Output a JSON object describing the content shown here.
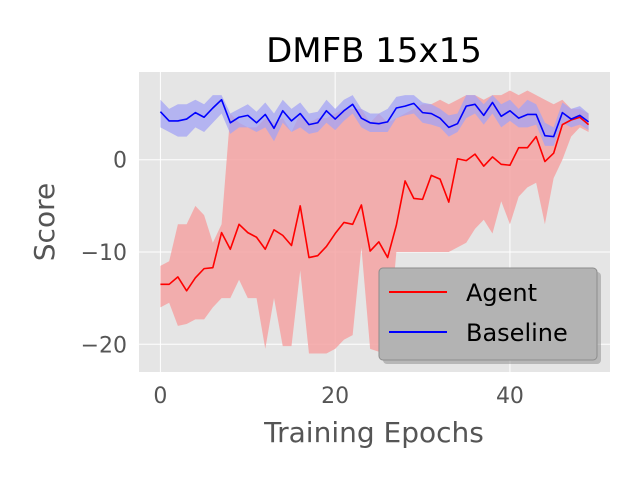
{
  "chart_data": {
    "type": "line",
    "title": "DMFB 15x15",
    "xlabel": "Training Epochs",
    "ylabel": "Score",
    "xlim": [
      -2.45,
      51.45
    ],
    "ylim": [
      -23,
      9.5
    ],
    "xticks": [
      0,
      20,
      40
    ],
    "xtick_labels": [
      "0",
      "20",
      "40"
    ],
    "yticks": [
      0,
      -10,
      -20
    ],
    "ytick_labels": [
      "0",
      "−10",
      "−20"
    ],
    "grid": true,
    "legend_position": "lower-right",
    "x": [
      0,
      1,
      2,
      3,
      4,
      5,
      6,
      7,
      8,
      9,
      10,
      11,
      12,
      13,
      14,
      15,
      16,
      17,
      18,
      19,
      20,
      21,
      22,
      23,
      24,
      25,
      26,
      27,
      28,
      29,
      30,
      31,
      32,
      33,
      34,
      35,
      36,
      37,
      38,
      39,
      40,
      41,
      42,
      43,
      44,
      45,
      46,
      47,
      48,
      49
    ],
    "series": [
      {
        "name": "Agent",
        "color": "#ff0000",
        "band_color": "#f4a3a3",
        "values": [
          -13.5,
          -13.5,
          -12.7,
          -14.2,
          -12.8,
          -11.8,
          -11.7,
          -7.9,
          -9.7,
          -7.0,
          -7.9,
          -8.4,
          -9.7,
          -7.6,
          -8.2,
          -9.3,
          -5.0,
          -10.6,
          -10.4,
          -9.4,
          -8.0,
          -6.8,
          -7.0,
          -4.9,
          -9.9,
          -8.9,
          -10.6,
          -7.1,
          -2.3,
          -4.2,
          -4.3,
          -1.7,
          -2.1,
          -4.6,
          0.1,
          -0.1,
          0.6,
          -0.7,
          0.3,
          -0.5,
          -0.6,
          1.3,
          1.3,
          2.5,
          -0.2,
          0.7,
          3.8,
          4.3,
          4.6,
          3.8
        ],
        "lower": [
          -16.0,
          -15.5,
          -18.0,
          -17.8,
          -17.3,
          -17.3,
          -16.0,
          -15.0,
          -15.0,
          -13.0,
          -15.0,
          -15.0,
          -20.5,
          -15.0,
          -20.2,
          -20.2,
          -12.0,
          -21.0,
          -21.0,
          -21.0,
          -20.5,
          -19.5,
          -19.0,
          -9.5,
          -20.5,
          -20.8,
          -20.8,
          -10.0,
          -10.0,
          -10.0,
          -10.0,
          -10.0,
          -10.0,
          -10.0,
          -9.5,
          -9.0,
          -7.5,
          -6.5,
          -8.0,
          -4.5,
          -7.0,
          -4.0,
          -3.0,
          -2.5,
          -7.0,
          -2.0,
          0.0,
          2.5,
          3.5,
          3.0
        ],
        "upper": [
          -11.5,
          -11.0,
          -7.0,
          -7.0,
          -5.0,
          -6.0,
          -9.0,
          -7.0,
          5.0,
          4.0,
          3.5,
          3.5,
          4.5,
          4.0,
          4.5,
          3.0,
          5.0,
          4.0,
          4.5,
          4.5,
          5.0,
          5.5,
          5.5,
          5.5,
          4.0,
          5.0,
          4.0,
          4.5,
          5.0,
          5.5,
          6.0,
          6.0,
          6.5,
          6.0,
          6.5,
          7.0,
          7.0,
          6.5,
          7.0,
          7.0,
          7.5,
          7.0,
          7.5,
          7.0,
          6.5,
          6.0,
          6.5,
          5.5,
          5.5,
          5.0
        ]
      },
      {
        "name": "Baseline",
        "color": "#0000ff",
        "band_color": "#a3a3f4",
        "values": [
          5.2,
          4.2,
          4.2,
          4.4,
          5.1,
          4.6,
          5.6,
          6.5,
          4.0,
          4.6,
          4.8,
          4.0,
          4.9,
          3.4,
          5.3,
          4.2,
          5.0,
          3.8,
          4.0,
          5.3,
          4.4,
          5.3,
          6.0,
          4.5,
          4.0,
          3.9,
          4.1,
          5.6,
          5.8,
          6.1,
          5.1,
          5.0,
          4.5,
          3.5,
          3.9,
          5.8,
          6.0,
          4.8,
          6.2,
          4.7,
          5.3,
          4.5,
          4.9,
          4.9,
          2.6,
          2.5,
          5.1,
          4.4,
          4.8,
          4.1
        ],
        "lower": [
          3.5,
          3.0,
          2.5,
          2.5,
          3.5,
          3.0,
          4.0,
          5.0,
          2.8,
          3.5,
          3.5,
          3.0,
          3.5,
          2.0,
          4.0,
          3.0,
          3.5,
          2.8,
          3.0,
          4.0,
          3.2,
          4.2,
          5.0,
          3.5,
          3.0,
          3.0,
          3.0,
          4.5,
          4.8,
          5.0,
          4.0,
          3.8,
          3.5,
          2.5,
          3.0,
          4.5,
          5.0,
          3.8,
          5.0,
          3.5,
          4.2,
          3.5,
          3.5,
          3.8,
          1.5,
          1.5,
          4.0,
          3.5,
          3.8,
          3.2
        ],
        "upper": [
          6.5,
          5.5,
          6.0,
          6.0,
          6.5,
          6.0,
          7.0,
          7.0,
          5.0,
          5.5,
          6.0,
          5.2,
          6.2,
          5.0,
          6.5,
          5.5,
          6.2,
          5.0,
          5.2,
          6.5,
          5.5,
          6.5,
          7.0,
          5.5,
          5.0,
          5.0,
          5.5,
          6.8,
          7.0,
          7.0,
          6.2,
          6.0,
          5.5,
          4.8,
          5.0,
          7.0,
          7.0,
          6.0,
          7.0,
          6.0,
          6.5,
          5.5,
          6.5,
          6.0,
          4.0,
          3.5,
          6.2,
          5.5,
          5.8,
          5.0
        ]
      }
    ]
  }
}
